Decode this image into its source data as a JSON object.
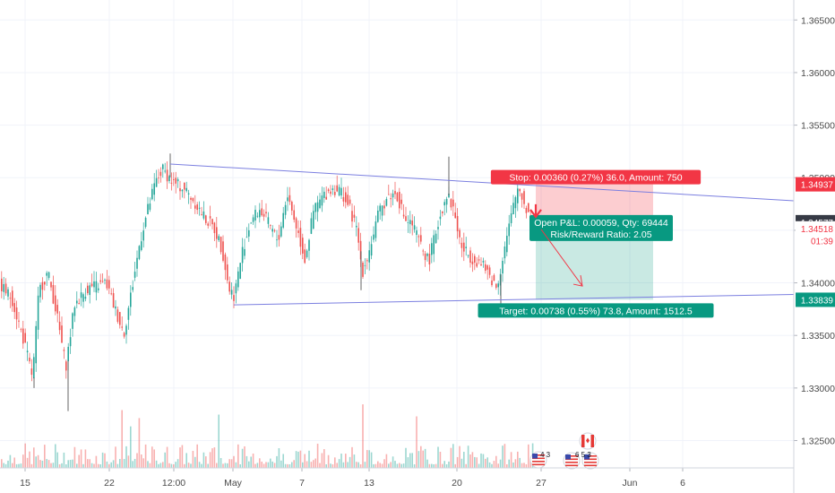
{
  "chart_data": {
    "type": "candlestick",
    "title": "",
    "ylim": [
      1.3224,
      1.3669
    ],
    "y_ticks": [
      "1.36500",
      "1.36000",
      "1.35500",
      "1.35000",
      "1.34500",
      "1.34000",
      "1.33500",
      "1.33000",
      "1.32500"
    ],
    "x_ticks": [
      "15",
      "22",
      "12:00",
      "May",
      "7",
      "13",
      "20",
      "27",
      "Jun",
      "6"
    ],
    "grid": true,
    "price_tags": [
      {
        "label": "1.34937",
        "value": 1.34937,
        "color": "#f23645"
      },
      {
        "label": "1.34577",
        "value": 1.34577,
        "color": "#363a45"
      },
      {
        "label": "1.34518",
        "value": 1.34518,
        "color": "#ffffff",
        "text_color": "#f23645"
      },
      {
        "label": "01:39",
        "value": 1.344,
        "color": "#ffffff",
        "text_color": "#f23645"
      },
      {
        "label": "1.33839",
        "value": 1.33839,
        "color": "#089981"
      }
    ],
    "position": {
      "side": "short",
      "entry": 1.34577,
      "stop": 1.34937,
      "target": 1.33839,
      "stop_label": "Stop: 0.00360 (0.27%) 36.0, Amount: 750",
      "target_label": "Target: 0.00738 (0.55%) 73.8, Amount: 1512.5",
      "pnl_label": "Open P&L: 0.00059, Qty: 69444",
      "rr_label": "Risk/Reward Ratio: 2.05"
    },
    "trendlines": [
      {
        "name": "upper",
        "from": [
          "Apr 23",
          1.3513
        ],
        "to": [
          "Jun 7",
          1.3478
        ]
      },
      {
        "name": "lower",
        "from": [
          "May 1",
          1.3379
        ],
        "to": [
          "Jun 7",
          1.3389
        ]
      }
    ],
    "events": [
      {
        "marker": "4 3"
      },
      {
        "marker": "6 5 3"
      }
    ],
    "colors": {
      "up": "#26a69a",
      "down": "#ef5350",
      "trend": "#7b7fe0",
      "grid": "#f0f3fa"
    }
  }
}
